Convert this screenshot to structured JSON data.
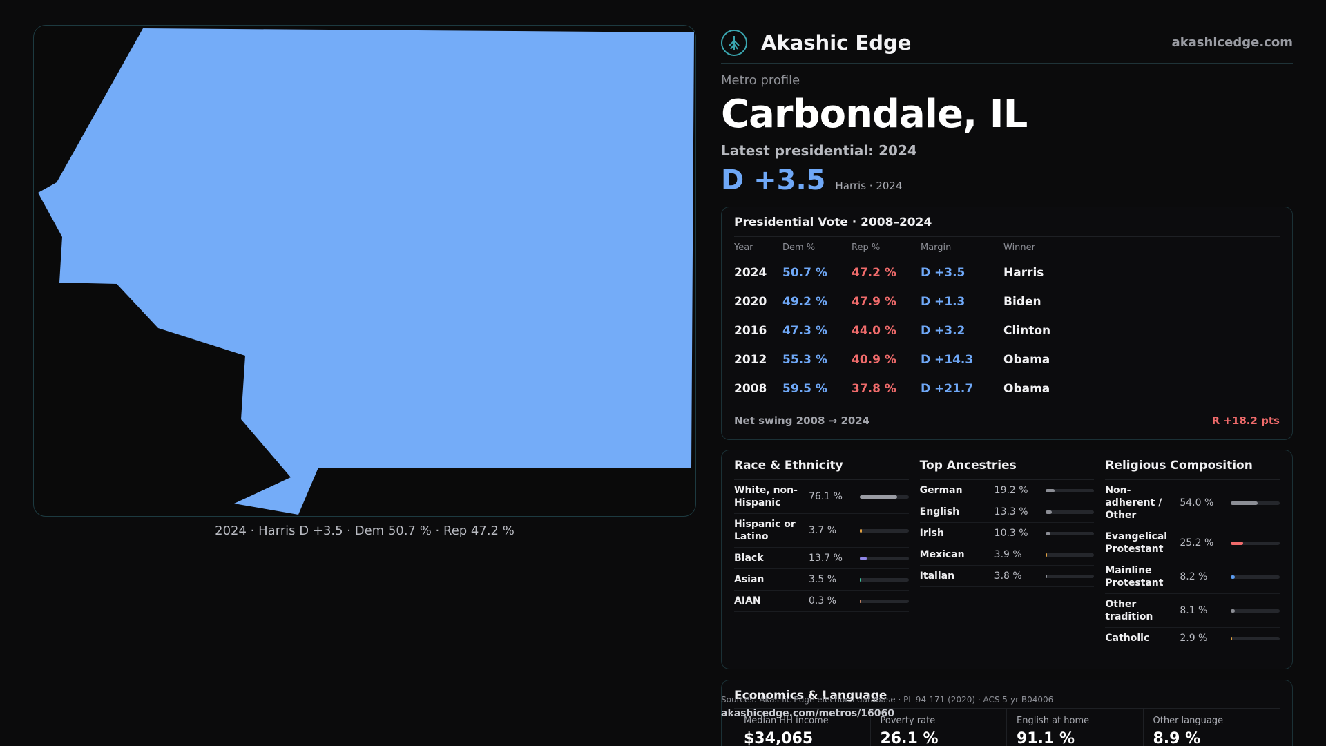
{
  "map": {
    "caption": "2024 · Harris D +3.5 · Dem 50.7 % · Rep 47.2 %",
    "fill_color": "#74acf8"
  },
  "brand": {
    "name": "Akashic Edge",
    "url": "akashicedge.com",
    "logo_icon": "tree-emblem-icon"
  },
  "profile": {
    "kicker": "Metro profile",
    "city": "Carbondale, IL",
    "latest_label": "Latest presidential: 2024",
    "margin": "D +3.5",
    "margin_sub": "Harris · 2024"
  },
  "vote": {
    "title": "Presidential Vote · 2008–2024",
    "headers": [
      "Year",
      "Dem %",
      "Rep %",
      "Margin",
      "Winner"
    ],
    "rows": [
      {
        "year": "2024",
        "dem": "50.7 %",
        "rep": "47.2 %",
        "margin": "D +3.5",
        "winner": "Harris"
      },
      {
        "year": "2020",
        "dem": "49.2 %",
        "rep": "47.9 %",
        "margin": "D +1.3",
        "winner": "Biden"
      },
      {
        "year": "2016",
        "dem": "47.3 %",
        "rep": "44.0 %",
        "margin": "D +3.2",
        "winner": "Clinton"
      },
      {
        "year": "2012",
        "dem": "55.3 %",
        "rep": "40.9 %",
        "margin": "D +14.3",
        "winner": "Obama"
      },
      {
        "year": "2008",
        "dem": "59.5 %",
        "rep": "37.8 %",
        "margin": "D +21.7",
        "winner": "Obama"
      }
    ],
    "swing_label": "Net swing 2008 → 2024",
    "swing_value": "R +18.2 pts"
  },
  "race": {
    "title": "Race & Ethnicity",
    "rows": [
      {
        "label": "White, non-Hispanic",
        "value": "76.1 %",
        "pct": 76.1,
        "color": "#9a9ca3"
      },
      {
        "label": "Hispanic or Latino",
        "value": "3.7 %",
        "pct": 3.7,
        "color": "#e0a040"
      },
      {
        "label": "Black",
        "value": "13.7 %",
        "pct": 13.7,
        "color": "#8f86e6"
      },
      {
        "label": "Asian",
        "value": "3.5 %",
        "pct": 3.5,
        "color": "#3fbf9a"
      },
      {
        "label": "AIAN",
        "value": "0.3 %",
        "pct": 0.3,
        "color": "#c08060"
      }
    ]
  },
  "ancestry": {
    "title": "Top Ancestries",
    "rows": [
      {
        "label": "German",
        "value": "19.2 %",
        "pct": 19.2,
        "color": "#8c8e95"
      },
      {
        "label": "English",
        "value": "13.3 %",
        "pct": 13.3,
        "color": "#8c8e95"
      },
      {
        "label": "Irish",
        "value": "10.3 %",
        "pct": 10.3,
        "color": "#8c8e95"
      },
      {
        "label": "Mexican",
        "value": "3.9 %",
        "pct": 3.9,
        "color": "#e0a040"
      },
      {
        "label": "Italian",
        "value": "3.8 %",
        "pct": 3.8,
        "color": "#8c8e95"
      }
    ]
  },
  "religion": {
    "title": "Religious Composition",
    "rows": [
      {
        "label": "Non-adherent / Other",
        "value": "54.0 %",
        "pct": 54.0,
        "color": "#8c8e95"
      },
      {
        "label": "Evangelical Protestant",
        "value": "25.2 %",
        "pct": 25.2,
        "color": "#f06b6b"
      },
      {
        "label": "Mainline Protestant",
        "value": "8.2 %",
        "pct": 8.2,
        "color": "#5b9cf0"
      },
      {
        "label": "Other tradition",
        "value": "8.1 %",
        "pct": 8.1,
        "color": "#8c8e95"
      },
      {
        "label": "Catholic",
        "value": "2.9 %",
        "pct": 2.9,
        "color": "#e0a040"
      }
    ]
  },
  "econ": {
    "title": "Economics & Language",
    "cells": [
      {
        "label": "Median HH income",
        "value": "$34,065"
      },
      {
        "label": "Poverty rate",
        "value": "26.1 %"
      },
      {
        "label": "English at home",
        "value": "91.1 %"
      },
      {
        "label": "Other language",
        "value": "8.9 %"
      }
    ]
  },
  "footer": {
    "sources": "Sources: Akashic Edge elections database · PL 94-171 (2020) · ACS 5-yr B04006",
    "url": "akashicedge.com/metros/16060"
  }
}
